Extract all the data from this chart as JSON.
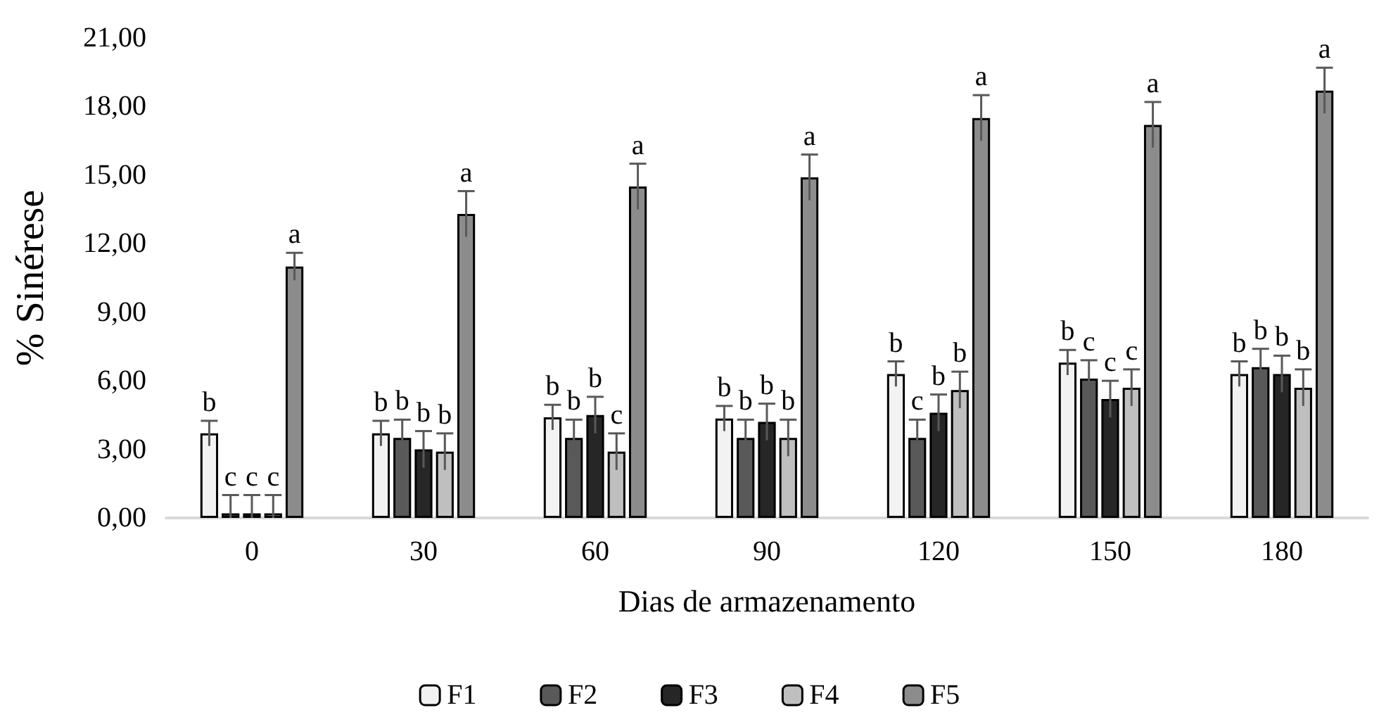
{
  "chart_data": {
    "type": "bar",
    "xlabel": "Dias de armazenamento",
    "ylabel": "% Sinérese",
    "categories": [
      "0",
      "30",
      "60",
      "90",
      "120",
      "150",
      "180"
    ],
    "ylim": [
      0,
      21
    ],
    "yticks": [
      {
        "value": 0,
        "label": "0,00"
      },
      {
        "value": 3,
        "label": "3,00"
      },
      {
        "value": 6,
        "label": "6,00"
      },
      {
        "value": 9,
        "label": "9,00"
      },
      {
        "value": 12,
        "label": "12,00"
      },
      {
        "value": 15,
        "label": "15,00"
      },
      {
        "value": 18,
        "label": "18,00"
      },
      {
        "value": 21,
        "label": "21,00"
      }
    ],
    "grid": false,
    "legend": "bottom",
    "series": [
      {
        "name": "F1",
        "color": "#f2f2f2",
        "values": [
          3.7,
          3.7,
          4.4,
          4.35,
          6.3,
          6.8,
          6.3
        ],
        "errors": [
          0.55,
          0.55,
          0.55,
          0.55,
          0.55,
          0.55,
          0.55
        ],
        "value_labels": [
          "b",
          "b",
          "b",
          "b",
          "b",
          "b",
          "b"
        ]
      },
      {
        "name": "F2",
        "color": "#595959",
        "values": [
          0.2,
          3.5,
          3.5,
          3.5,
          3.5,
          6.1,
          6.6
        ],
        "errors": [
          [
            0,
            1.0
          ],
          0.8,
          0.8,
          0.8,
          0.8,
          0.8,
          0.8
        ],
        "value_labels": [
          "c",
          "b",
          "b",
          "b",
          "c",
          "c",
          "b"
        ]
      },
      {
        "name": "F3",
        "color": "#262626",
        "values": [
          0.2,
          3.0,
          4.5,
          4.2,
          4.6,
          5.2,
          6.3
        ],
        "errors": [
          [
            0,
            1.0
          ],
          0.8,
          0.8,
          0.8,
          0.8,
          0.8,
          0.8
        ],
        "value_labels": [
          "c",
          "b",
          "b",
          "b",
          "b",
          "c",
          "b"
        ]
      },
      {
        "name": "F4",
        "color": "#bfbfbf",
        "values": [
          0.2,
          2.9,
          2.9,
          3.5,
          5.6,
          5.7,
          5.7
        ],
        "errors": [
          [
            0,
            1.0
          ],
          0.8,
          0.8,
          0.8,
          0.8,
          0.8,
          0.8
        ],
        "value_labels": [
          "c",
          "b",
          "c",
          "b",
          "b",
          "c",
          "b"
        ]
      },
      {
        "name": "F5",
        "color": "#8c8c8c",
        "values": [
          11.0,
          13.3,
          14.5,
          14.9,
          17.5,
          17.2,
          18.7
        ],
        "errors": [
          0.6,
          1.0,
          1.0,
          1.0,
          1.0,
          1.0,
          1.0
        ],
        "value_labels": [
          "a",
          "a",
          "a",
          "a",
          "a",
          "a",
          "a"
        ]
      }
    ]
  }
}
